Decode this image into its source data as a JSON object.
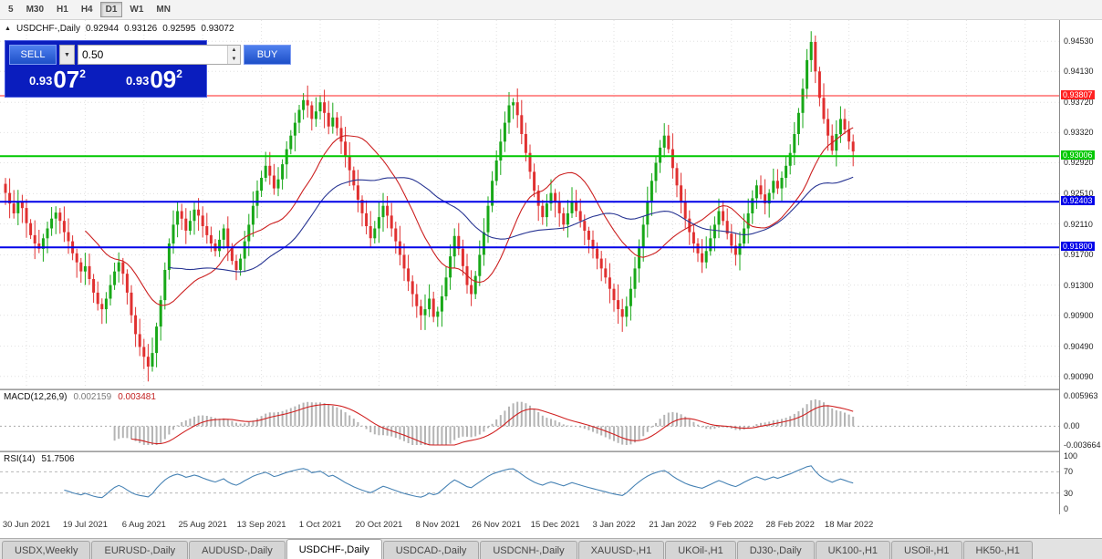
{
  "toolbar": {
    "timeframes": [
      {
        "label": "5",
        "active": false
      },
      {
        "label": "M30",
        "active": false
      },
      {
        "label": "H1",
        "active": false
      },
      {
        "label": "H4",
        "active": false
      },
      {
        "label": "D1",
        "active": true
      },
      {
        "label": "W1",
        "active": false
      },
      {
        "label": "MN",
        "active": false
      }
    ]
  },
  "symbol_info": {
    "collapse_icon": "▲",
    "title": "USDCHF-,Daily",
    "open": "0.92944",
    "high": "0.93126",
    "low": "0.92595",
    "close": "0.93072"
  },
  "trade_panel": {
    "sell_label": "SELL",
    "buy_label": "BUY",
    "dropdown_caret": "▼",
    "volume": "0.50",
    "spinner_up": "▲",
    "spinner_down": "▼",
    "sell_quote": {
      "prefix": "0.93",
      "main": "07",
      "sup": "2"
    },
    "buy_quote": {
      "prefix": "0.93",
      "main": "09",
      "sup": "2"
    }
  },
  "price_axis": {
    "ticks": [
      0.9453,
      0.9413,
      0.9372,
      0.9332,
      0.9292,
      0.9251,
      0.9211,
      0.917,
      0.913,
      0.909,
      0.9049,
      0.9009
    ]
  },
  "indicators": {
    "macd": {
      "name": "MACD(12,26,9)",
      "value_main": "0.002159",
      "value_signal": "0.003481",
      "axis": [
        0.005963,
        0,
        -0.003664
      ],
      "axis_labels": [
        "0.005963",
        "0.00",
        "-0.003664"
      ]
    },
    "rsi": {
      "name": "RSI(14)",
      "value": "51.7506",
      "axis": [
        100,
        70,
        30,
        0
      ],
      "axis_labels": [
        "100",
        "70",
        "30",
        "0"
      ],
      "levels": [
        70,
        30
      ]
    }
  },
  "tab_bar": {
    "tabs": [
      {
        "label": "USDX,Weekly",
        "active": false
      },
      {
        "label": "EURUSD-,Daily",
        "active": false
      },
      {
        "label": "AUDUSD-,Daily",
        "active": false
      },
      {
        "label": "USDCHF-,Daily",
        "active": true
      },
      {
        "label": "USDCAD-,Daily",
        "active": false
      },
      {
        "label": "USDCNH-,Daily",
        "active": false
      },
      {
        "label": "XAUUSD-,H1",
        "active": false
      },
      {
        "label": "UKOil-,H1",
        "active": false
      },
      {
        "label": "DJ30-,Daily",
        "active": false
      },
      {
        "label": "UK100-,H1",
        "active": false
      },
      {
        "label": "USOil-,H1",
        "active": false
      },
      {
        "label": "HK50-,H1",
        "active": false
      }
    ]
  },
  "colors": {
    "bull": "#18a818",
    "bear": "#e03030",
    "macd_hist": "#b4b4b4",
    "macd_signal": "#d02020",
    "rsi_line": "#4682b4",
    "panel_blue": "#0a1dbe"
  },
  "chart_data": {
    "type": "candlestick",
    "symbol": "USDCHF-,Daily",
    "ohlc_current": {
      "open": 0.92944,
      "high": 0.93126,
      "low": 0.92595,
      "close": 0.93072
    },
    "ylim": [
      0.8993,
      0.9481
    ],
    "date_ticks": {
      "first_index": 5,
      "step": 14
    },
    "dates": [
      "30 Jun 2021",
      "19 Jul 2021",
      "6 Aug 2021",
      "25 Aug 2021",
      "13 Sep 2021",
      "1 Oct 2021",
      "20 Oct 2021",
      "8 Nov 2021",
      "26 Nov 2021",
      "15 Dec 2021",
      "3 Jan 2022",
      "21 Jan 2022",
      "9 Feb 2022",
      "28 Feb 2022",
      "18 Mar 2022"
    ],
    "hlines": [
      {
        "price": 0.93807,
        "color": "#ff2020",
        "width": 1
      },
      {
        "price": 0.93006,
        "color": "#00c800",
        "width": 2
      },
      {
        "price": 0.92403,
        "color": "#0000e8",
        "width": 2
      },
      {
        "price": 0.918,
        "color": "#0000e8",
        "width": 2
      }
    ],
    "moving_averages": [
      {
        "period": 20,
        "color": "#cc2020"
      },
      {
        "period": 40,
        "color": "#283593"
      }
    ],
    "closes": [
      0.9252,
      0.9238,
      0.9225,
      0.9241,
      0.9232,
      0.9212,
      0.9196,
      0.9185,
      0.9178,
      0.9192,
      0.9205,
      0.9218,
      0.9226,
      0.9215,
      0.92,
      0.9188,
      0.9172,
      0.916,
      0.9148,
      0.9155,
      0.9138,
      0.912,
      0.9105,
      0.9098,
      0.9112,
      0.913,
      0.9148,
      0.916,
      0.9145,
      0.912,
      0.909,
      0.9065,
      0.9048,
      0.9035,
      0.9022,
      0.904,
      0.9075,
      0.911,
      0.915,
      0.9185,
      0.921,
      0.9228,
      0.9218,
      0.9202,
      0.9215,
      0.923,
      0.9222,
      0.9208,
      0.9196,
      0.9185,
      0.9175,
      0.919,
      0.9205,
      0.918,
      0.9162,
      0.915,
      0.9165,
      0.9188,
      0.921,
      0.9235,
      0.9255,
      0.9272,
      0.9288,
      0.9275,
      0.9258,
      0.927,
      0.929,
      0.931,
      0.9328,
      0.9345,
      0.9362,
      0.9375,
      0.9368,
      0.935,
      0.936,
      0.9372,
      0.9358,
      0.934,
      0.9352,
      0.9338,
      0.932,
      0.93,
      0.9282,
      0.9262,
      0.9243,
      0.9225,
      0.9208,
      0.9192,
      0.9205,
      0.922,
      0.9235,
      0.9222,
      0.9205,
      0.9188,
      0.917,
      0.9152,
      0.9135,
      0.9118,
      0.9102,
      0.909,
      0.9098,
      0.9112,
      0.9088,
      0.9095,
      0.9115,
      0.914,
      0.9168,
      0.9195,
      0.9178,
      0.9155,
      0.913,
      0.9118,
      0.9142,
      0.917,
      0.92,
      0.9235,
      0.9268,
      0.9295,
      0.932,
      0.9345,
      0.9368,
      0.9372,
      0.9355,
      0.933,
      0.9305,
      0.928,
      0.9255,
      0.9235,
      0.922,
      0.9238,
      0.9252,
      0.924,
      0.9225,
      0.921,
      0.9225,
      0.924,
      0.9228,
      0.9215,
      0.9202,
      0.919,
      0.9178,
      0.9165,
      0.9152,
      0.914,
      0.9125,
      0.911,
      0.9098,
      0.9088,
      0.9102,
      0.9125,
      0.9152,
      0.918,
      0.921,
      0.924,
      0.9268,
      0.9292,
      0.9312,
      0.9328,
      0.931,
      0.9285,
      0.9262,
      0.924,
      0.9218,
      0.92,
      0.9185,
      0.9172,
      0.916,
      0.9175,
      0.9192,
      0.921,
      0.9228,
      0.9215,
      0.9198,
      0.9182,
      0.917,
      0.9185,
      0.9205,
      0.9225,
      0.9245,
      0.9262,
      0.925,
      0.9238,
      0.9252,
      0.9268,
      0.9258,
      0.9272,
      0.9288,
      0.9305,
      0.933,
      0.9358,
      0.939,
      0.9428,
      0.9452,
      0.9413,
      0.9378,
      0.935,
      0.9328,
      0.9308,
      0.933,
      0.935,
      0.9336,
      0.932,
      0.9307
    ]
  }
}
